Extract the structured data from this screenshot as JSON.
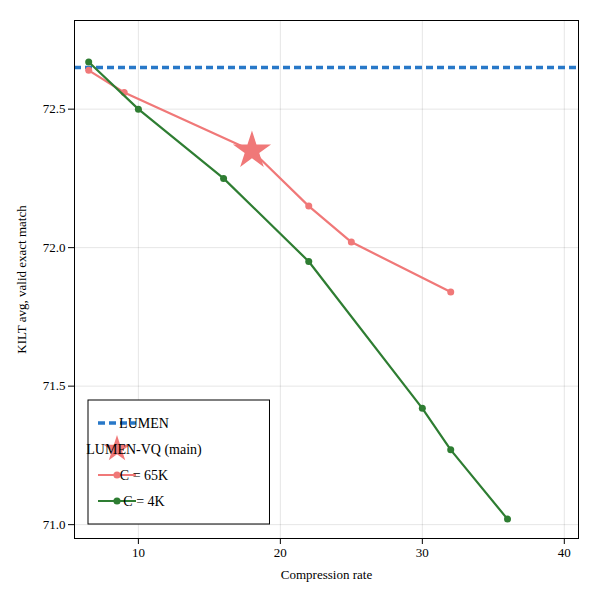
{
  "chart_data": {
    "type": "line",
    "xlabel": "Compression rate",
    "ylabel": "KILT avg, valid exact match",
    "xlim": [
      5.5,
      41
    ],
    "ylim": [
      70.95,
      72.82
    ],
    "xticks": [
      10,
      20,
      30,
      40
    ],
    "yticks": [
      {
        "value": 71.0,
        "label": "71.0"
      },
      71.5,
      {
        "value": 72.0,
        "label": "72.0"
      },
      72.5
    ],
    "grid": true,
    "legend": "lower left",
    "series": [
      {
        "name": "LUMEN",
        "type": "hline",
        "color": "#2878c8",
        "line_style": "dashed",
        "values": [
          72.65
        ]
      },
      {
        "name": "LUMEN-VQ (main)",
        "type": "scatter",
        "color": "#f07878",
        "marker": "star",
        "x": [
          18
        ],
        "values": [
          72.35
        ]
      },
      {
        "name": "C = 65K",
        "type": "line",
        "color": "#f07878",
        "marker": "circle",
        "line_style": "solid",
        "x": [
          6.5,
          9,
          18,
          22,
          25,
          32
        ],
        "values": [
          72.64,
          72.56,
          72.35,
          72.15,
          72.02,
          71.84
        ]
      },
      {
        "name": "C = 4K",
        "type": "line",
        "color": "#2e7d32",
        "marker": "circle",
        "line_style": "solid",
        "x": [
          6.5,
          10,
          16,
          22,
          30,
          32,
          36
        ],
        "values": [
          72.67,
          72.5,
          72.25,
          71.95,
          71.42,
          71.27,
          71.02
        ]
      }
    ]
  }
}
